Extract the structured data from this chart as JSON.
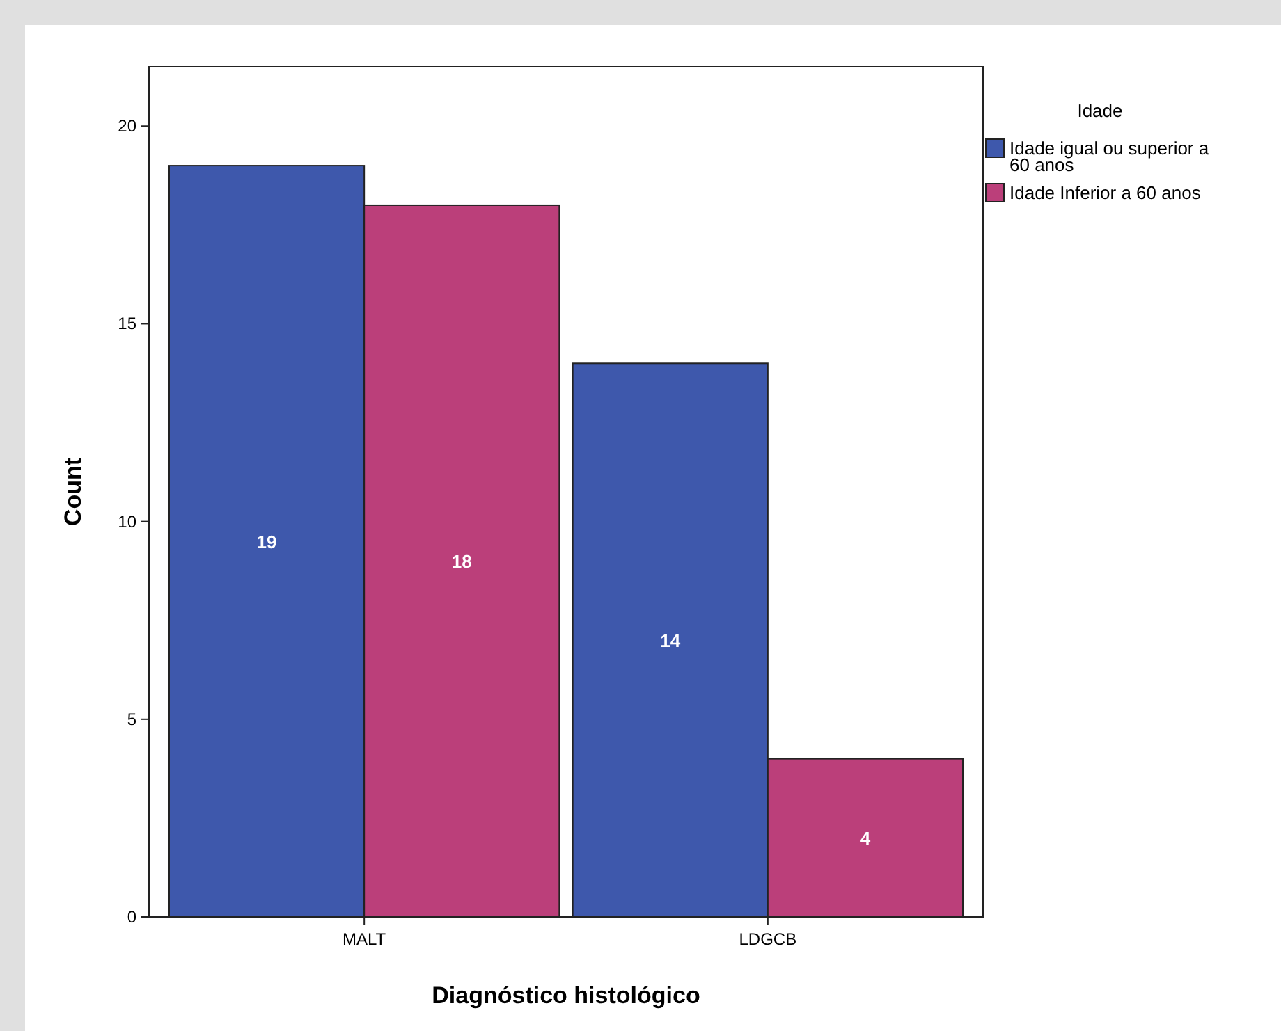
{
  "chart_data": {
    "type": "bar",
    "xlabel": "Diagnóstico histológico",
    "ylabel": "Count",
    "legend_title": "Idade",
    "categories": [
      "MALT",
      "LDGCB"
    ],
    "series": [
      {
        "name": "Idade igual ou superior a 60 anos",
        "color": "#3e58ac",
        "values": [
          19,
          14
        ]
      },
      {
        "name": "Idade Inferior a 60 anos",
        "color": "#bb3f7a",
        "values": [
          18,
          4
        ]
      }
    ],
    "ylim": [
      0,
      21.5
    ],
    "yticks": [
      0,
      5,
      10,
      15,
      20
    ],
    "data_labels": true,
    "legend": "right",
    "grid": false
  }
}
